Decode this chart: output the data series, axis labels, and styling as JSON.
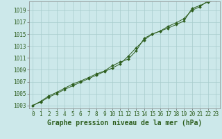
{
  "title": "Graphe pression niveau de la mer (hPa)",
  "x_data": [
    0,
    1,
    2,
    3,
    4,
    5,
    6,
    7,
    8,
    9,
    10,
    11,
    12,
    13,
    14,
    15,
    16,
    17,
    18,
    19,
    20,
    21,
    22,
    23
  ],
  "y_data1": [
    1003.0,
    1003.7,
    1004.6,
    1005.2,
    1005.9,
    1006.6,
    1007.1,
    1007.7,
    1008.3,
    1008.8,
    1009.7,
    1010.3,
    1010.8,
    1012.2,
    1014.3,
    1015.0,
    1015.5,
    1016.3,
    1016.9,
    1017.6,
    1019.0,
    1019.6,
    1020.6,
    1021.0
  ],
  "y_data2": [
    1003.0,
    1003.6,
    1004.4,
    1005.0,
    1005.7,
    1006.3,
    1006.9,
    1007.5,
    1008.1,
    1008.7,
    1009.3,
    1010.0,
    1011.3,
    1012.7,
    1014.0,
    1015.0,
    1015.5,
    1016.0,
    1016.6,
    1017.2,
    1019.3,
    1019.8,
    1020.4,
    1020.7
  ],
  "ylim_min": 1002.5,
  "ylim_max": 1020.5,
  "xlim_min": -0.5,
  "xlim_max": 23.5,
  "yticks": [
    1003,
    1005,
    1007,
    1009,
    1011,
    1013,
    1015,
    1017,
    1019
  ],
  "xticks": [
    0,
    1,
    2,
    3,
    4,
    5,
    6,
    7,
    8,
    9,
    10,
    11,
    12,
    13,
    14,
    15,
    16,
    17,
    18,
    19,
    20,
    21,
    22,
    23
  ],
  "line_color": "#2d5e1e",
  "bg_color": "#cce8ea",
  "grid_color": "#a8cccc",
  "title_color": "#2d5e1e",
  "title_fontsize": 7.0,
  "tick_fontsize": 5.5
}
